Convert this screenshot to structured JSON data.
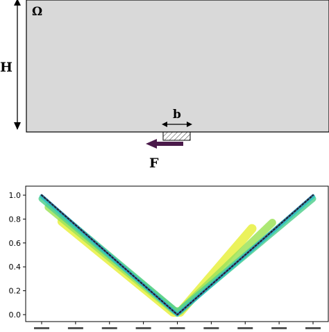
{
  "diagram": {
    "domain_label": "Ω",
    "height_label": "H",
    "width_label": "b",
    "force_label": "F",
    "colors": {
      "domain_fill": "#d9d9d9",
      "force_arrow": "#4a1a4a",
      "outline": "#000000"
    }
  },
  "chart_data": {
    "type": "line",
    "title": "",
    "xlabel": "",
    "ylabel": "",
    "ylim": [
      0.0,
      1.0
    ],
    "yticks": [
      "0.0",
      "0.2",
      "0.4",
      "0.6",
      "0.8",
      "1.0"
    ],
    "xlim": [
      0.9,
      1.1
    ],
    "grid": false,
    "series": [
      {
        "color": "#e8f040",
        "x": [
          0.915,
          0.997,
          1.002,
          1.055
        ],
        "y": [
          0.78,
          0.02,
          0.02,
          0.72
        ]
      },
      {
        "color": "#9ee35a",
        "x": [
          0.905,
          0.998,
          1.002,
          1.07
        ],
        "y": [
          0.9,
          0.03,
          0.03,
          0.77
        ]
      },
      {
        "color": "#53d08f",
        "x": [
          0.9,
          1.0,
          1.1
        ],
        "y": [
          0.97,
          0.02,
          0.97
        ]
      },
      {
        "color": "#2ec4c0",
        "x": [
          0.9,
          1.0,
          1.1
        ],
        "y": [
          0.99,
          0.0,
          0.99
        ]
      },
      {
        "color": "#3a6fb0",
        "x": [
          0.9,
          1.0,
          1.1
        ],
        "y": [
          1.0,
          0.0,
          1.0
        ]
      },
      {
        "color": "#222222",
        "style": "dotted",
        "x": [
          0.9,
          1.0,
          1.1
        ],
        "y": [
          1.0,
          0.0,
          1.0
        ]
      }
    ]
  }
}
